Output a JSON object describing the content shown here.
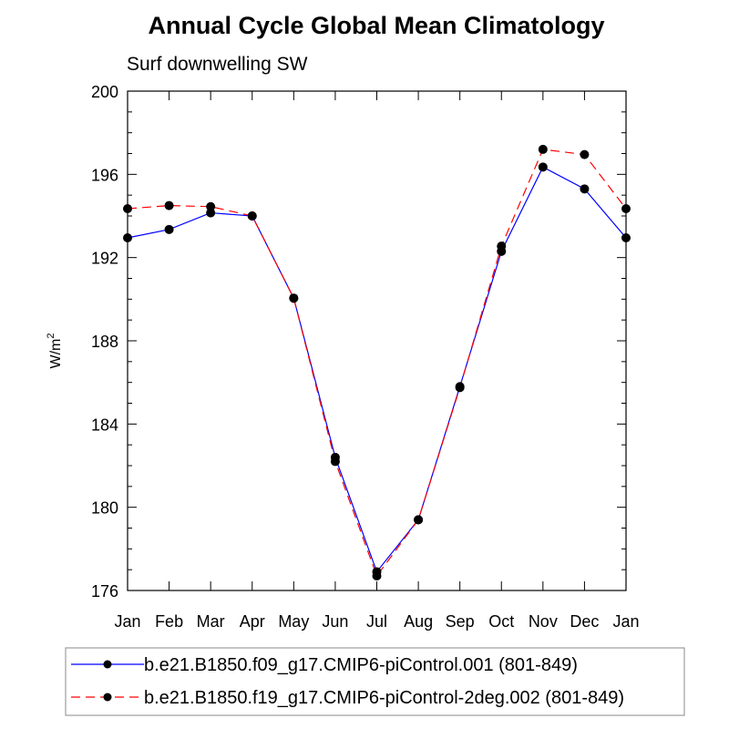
{
  "chart_data": {
    "type": "line",
    "title": "Annual Cycle Global Mean Climatology",
    "subtitle": "Surf downwelling SW",
    "xlabel": "",
    "ylabel": "W/m",
    "ylabel_sup": "2",
    "categories": [
      "Jan",
      "Feb",
      "Mar",
      "Apr",
      "May",
      "Jun",
      "Jul",
      "Aug",
      "Sep",
      "Oct",
      "Nov",
      "Dec",
      "Jan"
    ],
    "ylim": [
      176,
      200
    ],
    "yticks": [
      176,
      180,
      184,
      188,
      192,
      196,
      200
    ],
    "yminor_step": 1,
    "grid": false,
    "legend_position": "bottom",
    "series": [
      {
        "name": "b.e21.B1850.f09_g17.CMIP6-piControl.001 (801-849)",
        "color": "#0000ff",
        "dash": "solid",
        "values": [
          192.95,
          193.35,
          194.15,
          194.0,
          190.05,
          182.4,
          176.9,
          179.4,
          185.8,
          192.3,
          196.35,
          195.3,
          192.95
        ]
      },
      {
        "name": "b.e21.B1850.f19_g17.CMIP6-piControl-2deg.002 (801-849)",
        "color": "#ff0000",
        "dash": "dashed",
        "values": [
          194.35,
          194.5,
          194.45,
          194.0,
          190.05,
          182.2,
          176.7,
          179.4,
          185.75,
          192.55,
          197.2,
          196.95,
          194.35
        ]
      }
    ]
  }
}
